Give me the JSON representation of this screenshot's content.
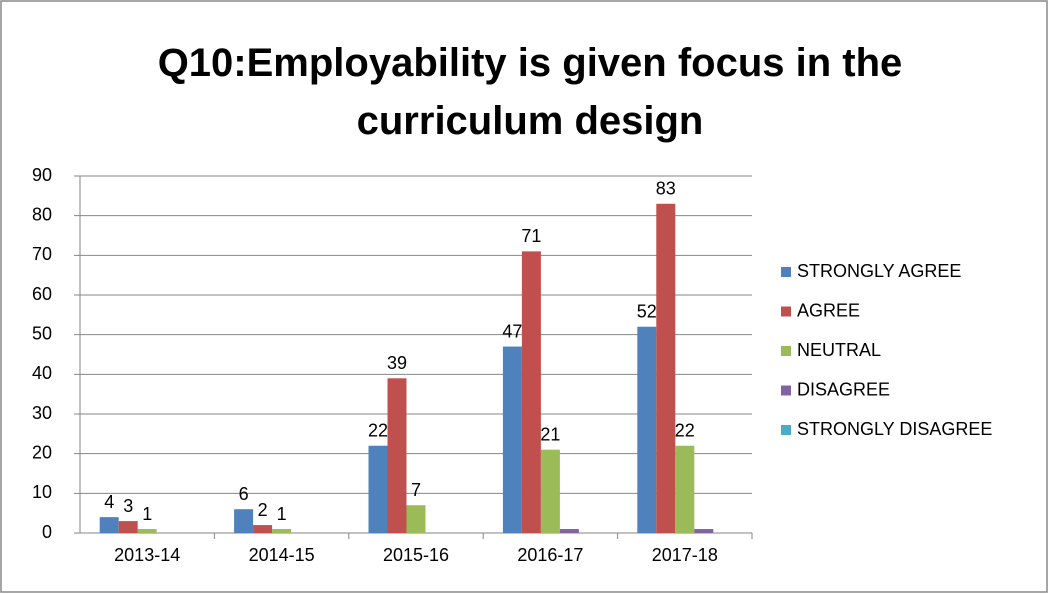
{
  "chart_data": {
    "type": "bar",
    "title": "Q10:Employability is given focus in the curriculum design",
    "categories": [
      "2013-14",
      "2014-15",
      "2015-16",
      "2016-17",
      "2017-18"
    ],
    "series": [
      {
        "name": "STRONGLY AGREE",
        "color": "#4f81bd",
        "values": [
          4,
          6,
          22,
          47,
          52
        ],
        "data_labels": true
      },
      {
        "name": "AGREE",
        "color": "#c0504d",
        "values": [
          3,
          2,
          39,
          71,
          83
        ],
        "data_labels": true
      },
      {
        "name": "NEUTRAL",
        "color": "#9bbb59",
        "values": [
          1,
          1,
          7,
          21,
          22
        ],
        "data_labels": true
      },
      {
        "name": "DISAGREE",
        "color": "#8064a2",
        "values": [
          0,
          0,
          0,
          1,
          1
        ],
        "data_labels": false
      },
      {
        "name": "STRONGLY DISAGREE",
        "color": "#4bacc6",
        "values": [
          0,
          0,
          0,
          0,
          0
        ],
        "data_labels": false
      }
    ],
    "ylim": [
      0,
      90
    ],
    "yticks": [
      0,
      10,
      20,
      30,
      40,
      50,
      60,
      70,
      80,
      90
    ],
    "grid": true,
    "legend": "right"
  }
}
